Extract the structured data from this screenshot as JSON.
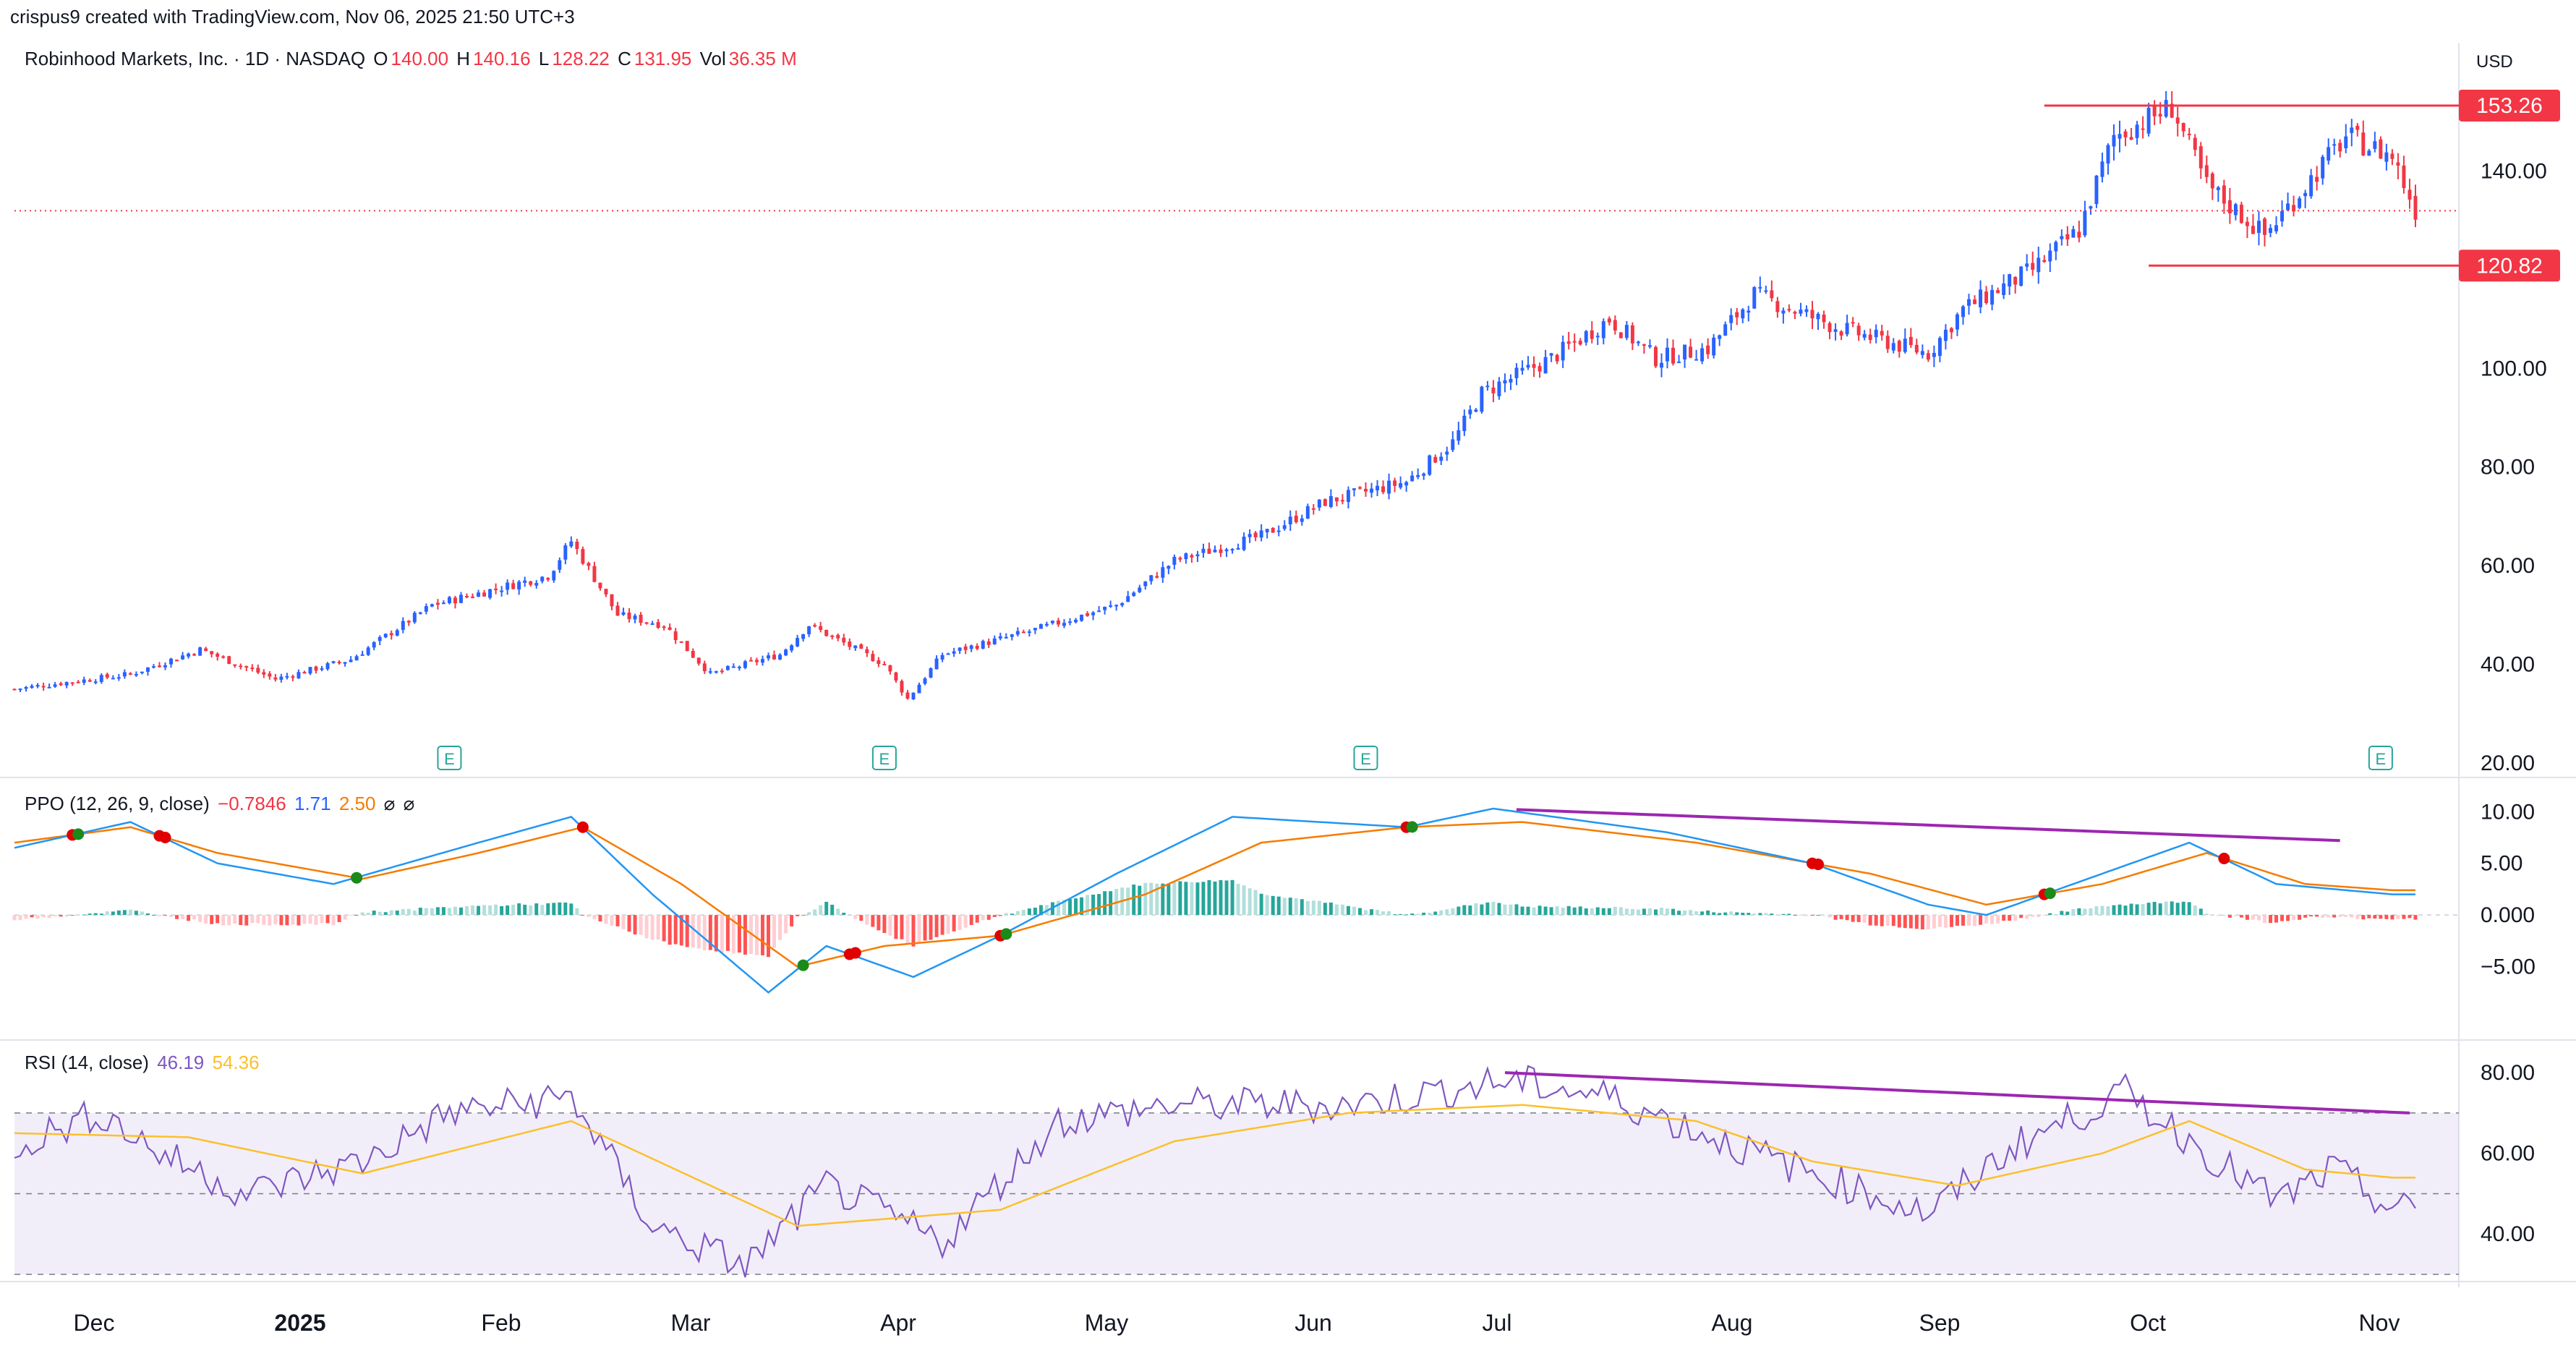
{
  "header": {
    "credit": "crispus9 created with TradingView.com, Nov 06, 2025 21:50 UTC+3"
  },
  "symbol": {
    "name": "Robinhood Markets, Inc. · 1D · NASDAQ",
    "o_label": "O",
    "o": "140.00",
    "h_label": "H",
    "h": "140.16",
    "l_label": "L",
    "l": "128.22",
    "c_label": "C",
    "c": "131.95",
    "vol_label": "Vol",
    "vol": "36.35 M"
  },
  "currency": "USD",
  "colors": {
    "up": "#2962ff",
    "down": "#f23645",
    "level": "#f23645",
    "ppo_line": "#2196f3",
    "ppo_signal": "#f57c00",
    "rsi_line": "#7e57c2",
    "rsi_ma": "#fbc02d",
    "trend": "#9c27b0"
  },
  "ppo": {
    "title": "PPO (12, 26, 9, close)",
    "hist": "−0.7846",
    "ppo": "1.71",
    "signal": "2.50",
    "flag1": "⌀",
    "flag2": "⌀"
  },
  "rsi": {
    "title": "RSI (14, close)",
    "value": "46.19",
    "ma": "54.36"
  },
  "chart_data": [
    {
      "type": "candlestick",
      "title": "Robinhood Markets, Inc. · 1D · NASDAQ",
      "ylim": [
        20,
        160
      ],
      "y_ticks": [
        "20.00",
        "40.00",
        "60.00",
        "80.00",
        "100.00",
        "140.00"
      ],
      "x_ticks": [
        "Dec",
        "2025",
        "Feb",
        "Mar",
        "Apr",
        "May",
        "Jun",
        "Jul",
        "Aug",
        "Sep",
        "Oct",
        "Nov"
      ],
      "levels": [
        {
          "label": "153.26",
          "value": 153.26
        },
        {
          "label": "120.82",
          "value": 120.82
        }
      ],
      "last_close": 131.95,
      "earnings_markers": [
        "E",
        "E",
        "E",
        "E"
      ],
      "anchors": [
        {
          "t": 0,
          "v": 35
        },
        {
          "t": 20,
          "v": 38
        },
        {
          "t": 32,
          "v": 43
        },
        {
          "t": 45,
          "v": 37
        },
        {
          "t": 58,
          "v": 41
        },
        {
          "t": 72,
          "v": 52
        },
        {
          "t": 92,
          "v": 58
        },
        {
          "t": 96,
          "v": 65
        },
        {
          "t": 104,
          "v": 50
        },
        {
          "t": 112,
          "v": 48
        },
        {
          "t": 120,
          "v": 38
        },
        {
          "t": 132,
          "v": 42
        },
        {
          "t": 137,
          "v": 48
        },
        {
          "t": 150,
          "v": 40
        },
        {
          "t": 154,
          "v": 33
        },
        {
          "t": 160,
          "v": 42
        },
        {
          "t": 176,
          "v": 47
        },
        {
          "t": 190,
          "v": 52
        },
        {
          "t": 200,
          "v": 61
        },
        {
          "t": 215,
          "v": 66
        },
        {
          "t": 226,
          "v": 73
        },
        {
          "t": 240,
          "v": 77
        },
        {
          "t": 248,
          "v": 85
        },
        {
          "t": 253,
          "v": 95
        },
        {
          "t": 265,
          "v": 102
        },
        {
          "t": 275,
          "v": 110
        },
        {
          "t": 283,
          "v": 102
        },
        {
          "t": 292,
          "v": 104
        },
        {
          "t": 300,
          "v": 115
        },
        {
          "t": 315,
          "v": 108
        },
        {
          "t": 330,
          "v": 103
        },
        {
          "t": 336,
          "v": 112
        },
        {
          "t": 348,
          "v": 120
        },
        {
          "t": 356,
          "v": 128
        },
        {
          "t": 362,
          "v": 147
        },
        {
          "t": 372,
          "v": 153
        },
        {
          "t": 378,
          "v": 137
        },
        {
          "t": 388,
          "v": 127
        },
        {
          "t": 395,
          "v": 137
        },
        {
          "t": 402,
          "v": 147
        },
        {
          "t": 410,
          "v": 143
        },
        {
          "t": 414,
          "v": 132
        }
      ]
    },
    {
      "type": "line",
      "title": "PPO (12, 26, 9, close)",
      "ylim": [
        -8,
        11
      ],
      "y_ticks": [
        "10.00",
        "5.00",
        "0.000",
        "−5.00"
      ],
      "series": [
        {
          "name": "PPO",
          "anchors": [
            {
              "t": 0,
              "v": 6.5
            },
            {
              "t": 20,
              "v": 9
            },
            {
              "t": 35,
              "v": 5
            },
            {
              "t": 55,
              "v": 3
            },
            {
              "t": 80,
              "v": 7
            },
            {
              "t": 96,
              "v": 9.5
            },
            {
              "t": 110,
              "v": 2
            },
            {
              "t": 130,
              "v": -7.5
            },
            {
              "t": 140,
              "v": -3
            },
            {
              "t": 155,
              "v": -6
            },
            {
              "t": 170,
              "v": -2
            },
            {
              "t": 190,
              "v": 4
            },
            {
              "t": 210,
              "v": 9.5
            },
            {
              "t": 240,
              "v": 8.5
            },
            {
              "t": 255,
              "v": 10.3
            },
            {
              "t": 285,
              "v": 8
            },
            {
              "t": 310,
              "v": 5
            },
            {
              "t": 330,
              "v": 1
            },
            {
              "t": 340,
              "v": 0
            },
            {
              "t": 360,
              "v": 4
            },
            {
              "t": 375,
              "v": 7
            },
            {
              "t": 390,
              "v": 3
            },
            {
              "t": 410,
              "v": 2
            }
          ]
        },
        {
          "name": "Signal",
          "anchors": [
            {
              "t": 0,
              "v": 7
            },
            {
              "t": 20,
              "v": 8.5
            },
            {
              "t": 35,
              "v": 6
            },
            {
              "t": 60,
              "v": 3.5
            },
            {
              "t": 80,
              "v": 6
            },
            {
              "t": 98,
              "v": 8.5
            },
            {
              "t": 115,
              "v": 3
            },
            {
              "t": 135,
              "v": -5
            },
            {
              "t": 150,
              "v": -3
            },
            {
              "t": 170,
              "v": -2
            },
            {
              "t": 195,
              "v": 2
            },
            {
              "t": 215,
              "v": 7
            },
            {
              "t": 240,
              "v": 8.5
            },
            {
              "t": 260,
              "v": 9
            },
            {
              "t": 290,
              "v": 7
            },
            {
              "t": 320,
              "v": 4
            },
            {
              "t": 340,
              "v": 1
            },
            {
              "t": 360,
              "v": 3
            },
            {
              "t": 378,
              "v": 6
            },
            {
              "t": 395,
              "v": 3
            },
            {
              "t": 410,
              "v": 2.4
            }
          ]
        }
      ],
      "trendline": [
        {
          "t": 259,
          "v": 10.2
        },
        {
          "t": 401,
          "v": 7.2
        }
      ]
    },
    {
      "type": "line",
      "title": "RSI (14, close)",
      "ylim": [
        25,
        85
      ],
      "y_ticks": [
        "80.00",
        "60.00",
        "40.00"
      ],
      "bands": [
        70,
        50,
        30
      ],
      "series": [
        {
          "name": "RSI",
          "anchors": [
            {
              "t": 0,
              "v": 62
            },
            {
              "t": 15,
              "v": 70
            },
            {
              "t": 25,
              "v": 60
            },
            {
              "t": 40,
              "v": 50
            },
            {
              "t": 60,
              "v": 58
            },
            {
              "t": 75,
              "v": 70
            },
            {
              "t": 96,
              "v": 74
            },
            {
              "t": 110,
              "v": 42
            },
            {
              "t": 126,
              "v": 32
            },
            {
              "t": 140,
              "v": 52
            },
            {
              "t": 160,
              "v": 38
            },
            {
              "t": 180,
              "v": 68
            },
            {
              "t": 200,
              "v": 72
            },
            {
              "t": 230,
              "v": 72
            },
            {
              "t": 258,
              "v": 78
            },
            {
              "t": 275,
              "v": 74
            },
            {
              "t": 300,
              "v": 60
            },
            {
              "t": 330,
              "v": 45
            },
            {
              "t": 345,
              "v": 62
            },
            {
              "t": 364,
              "v": 75
            },
            {
              "t": 380,
              "v": 58
            },
            {
              "t": 390,
              "v": 48
            },
            {
              "t": 400,
              "v": 56
            },
            {
              "t": 410,
              "v": 46
            }
          ]
        },
        {
          "name": "RSI MA",
          "anchors": [
            {
              "t": 0,
              "v": 65
            },
            {
              "t": 30,
              "v": 64
            },
            {
              "t": 60,
              "v": 55
            },
            {
              "t": 96,
              "v": 68
            },
            {
              "t": 135,
              "v": 42
            },
            {
              "t": 170,
              "v": 46
            },
            {
              "t": 200,
              "v": 63
            },
            {
              "t": 230,
              "v": 70
            },
            {
              "t": 260,
              "v": 72
            },
            {
              "t": 290,
              "v": 68
            },
            {
              "t": 310,
              "v": 58
            },
            {
              "t": 335,
              "v": 52
            },
            {
              "t": 360,
              "v": 60
            },
            {
              "t": 375,
              "v": 68
            },
            {
              "t": 395,
              "v": 56
            },
            {
              "t": 410,
              "v": 54
            }
          ]
        }
      ],
      "trendline": [
        {
          "t": 257,
          "v": 80
        },
        {
          "t": 413,
          "v": 70
        }
      ]
    }
  ]
}
